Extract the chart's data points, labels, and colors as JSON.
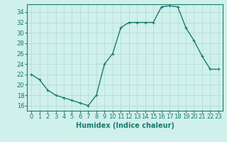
{
  "x": [
    0,
    1,
    2,
    3,
    4,
    5,
    6,
    7,
    8,
    9,
    10,
    11,
    12,
    13,
    14,
    15,
    16,
    17,
    18,
    19,
    20,
    21,
    22,
    23
  ],
  "y": [
    22,
    21,
    19,
    18,
    17.5,
    17,
    16.5,
    16,
    18,
    24,
    26,
    31,
    32,
    32,
    32,
    32,
    35,
    35.2,
    35,
    31,
    28.5,
    25.5,
    23,
    23
  ],
  "line_color": "#1a7a6e",
  "marker": "+",
  "bg_color": "#cff0eb",
  "grid_color": "#b0d8d2",
  "xlabel": "Humidex (Indice chaleur)",
  "xlim": [
    -0.5,
    23.5
  ],
  "ylim": [
    15.0,
    35.5
  ],
  "yticks": [
    16,
    18,
    20,
    22,
    24,
    26,
    28,
    30,
    32,
    34
  ],
  "xticks": [
    0,
    1,
    2,
    3,
    4,
    5,
    6,
    7,
    8,
    9,
    10,
    11,
    12,
    13,
    14,
    15,
    16,
    17,
    18,
    19,
    20,
    21,
    22,
    23
  ],
  "xtick_labels": [
    "0",
    "1",
    "2",
    "3",
    "4",
    "5",
    "6",
    "7",
    "8",
    "9",
    "10",
    "11",
    "12",
    "13",
    "14",
    "15",
    "16",
    "17",
    "18",
    "19",
    "20",
    "21",
    "22",
    "23"
  ],
  "tick_color": "#1a7a6e",
  "spine_color": "#1a7a6e",
  "xlabel_fontsize": 7,
  "tick_fontsize": 6,
  "linewidth": 1.0,
  "markersize": 3,
  "markeredgewidth": 0.8
}
